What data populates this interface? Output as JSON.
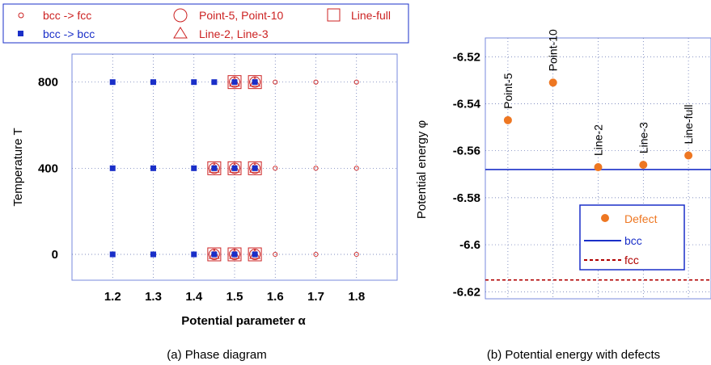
{
  "chart_data": [
    {
      "type": "scatter",
      "caption": "(a) Phase diagram",
      "xlabel": "Potential parameter α",
      "ylabel": "Temperature T",
      "xlim": [
        1.1,
        1.9
      ],
      "ylim": [
        -120,
        930
      ],
      "xticks": [
        1.2,
        1.3,
        1.4,
        1.5,
        1.6,
        1.7,
        1.8
      ],
      "xtick_labels": [
        "1.2",
        "1.3",
        "1.4",
        "1.5",
        "1.6",
        "1.7",
        "1.8"
      ],
      "yticks": [
        0,
        400,
        800
      ],
      "ytick_labels": [
        "0",
        "400",
        "800"
      ],
      "grid": true,
      "legend_position": "top",
      "legend": {
        "bcc_fcc": "bcc -> fcc",
        "bcc_bcc": "bcc -> bcc",
        "point": "Point-5, Point-10",
        "line2": "Line-2, Line-3",
        "linefull": "Line-full"
      },
      "series": [
        {
          "name": "bcc -> fcc",
          "color": "#cc2222",
          "points": [
            [
              1.6,
              0
            ],
            [
              1.7,
              0
            ],
            [
              1.8,
              0
            ],
            [
              1.6,
              400
            ],
            [
              1.7,
              400
            ],
            [
              1.8,
              400
            ],
            [
              1.6,
              800
            ],
            [
              1.7,
              800
            ],
            [
              1.8,
              800
            ]
          ]
        },
        {
          "name": "bcc -> bcc",
          "color": "#1a2fc8",
          "points": [
            [
              1.2,
              0
            ],
            [
              1.3,
              0
            ],
            [
              1.4,
              0
            ],
            [
              1.45,
              0
            ],
            [
              1.5,
              0
            ],
            [
              1.55,
              0
            ],
            [
              1.2,
              400
            ],
            [
              1.3,
              400
            ],
            [
              1.4,
              400
            ],
            [
              1.45,
              400
            ],
            [
              1.5,
              400
            ],
            [
              1.55,
              400
            ],
            [
              1.2,
              800
            ],
            [
              1.3,
              800
            ],
            [
              1.4,
              800
            ],
            [
              1.45,
              800
            ],
            [
              1.5,
              800
            ],
            [
              1.55,
              800
            ]
          ]
        },
        {
          "name": "Point-5, Point-10",
          "color": "#cc2222",
          "points": [
            [
              1.45,
              0
            ],
            [
              1.5,
              0
            ],
            [
              1.55,
              0
            ],
            [
              1.45,
              400
            ],
            [
              1.5,
              400
            ],
            [
              1.55,
              400
            ],
            [
              1.5,
              800
            ],
            [
              1.55,
              800
            ]
          ]
        },
        {
          "name": "Line-2, Line-3",
          "color": "#cc2222",
          "points": [
            [
              1.45,
              0
            ],
            [
              1.5,
              0
            ],
            [
              1.55,
              0
            ],
            [
              1.45,
              400
            ],
            [
              1.5,
              400
            ],
            [
              1.55,
              400
            ],
            [
              1.5,
              800
            ],
            [
              1.55,
              800
            ]
          ]
        },
        {
          "name": "Line-full",
          "color": "#cc2222",
          "points": [
            [
              1.45,
              0
            ],
            [
              1.5,
              0
            ],
            [
              1.55,
              0
            ],
            [
              1.45,
              400
            ],
            [
              1.5,
              400
            ],
            [
              1.55,
              400
            ],
            [
              1.5,
              800
            ],
            [
              1.55,
              800
            ]
          ]
        }
      ]
    },
    {
      "type": "scatter",
      "caption": "(b) Potential energy with defects",
      "ylabel": "Potential energy φ",
      "ylim": [
        -6.623,
        -6.512
      ],
      "xlim": [
        0,
        5
      ],
      "yticks": [
        -6.52,
        -6.54,
        -6.56,
        -6.58,
        -6.6,
        -6.62
      ],
      "ytick_labels": [
        "-6.52",
        "-6.54",
        "-6.56",
        "-6.58",
        "-6.6",
        "-6.62"
      ],
      "grid": true,
      "legend_position": "bottom-right",
      "legend": {
        "defect": "Defect",
        "bcc": "bcc",
        "fcc": "fcc"
      },
      "defects": [
        {
          "label": "Point-5",
          "x": 0.5,
          "value": -6.547
        },
        {
          "label": "Point-10",
          "x": 1.5,
          "value": -6.531
        },
        {
          "label": "Line-2",
          "x": 2.5,
          "value": -6.567
        },
        {
          "label": "Line-3",
          "x": 3.5,
          "value": -6.566
        },
        {
          "label": "Line-full",
          "x": 4.5,
          "value": -6.562
        }
      ],
      "reference_lines": [
        {
          "name": "bcc",
          "value": -6.568,
          "color": "#1a2fc8",
          "style": "solid"
        },
        {
          "name": "fcc",
          "value": -6.615,
          "color": "#b00000",
          "style": "dashed"
        }
      ],
      "defect_color": "#ee7722"
    }
  ]
}
